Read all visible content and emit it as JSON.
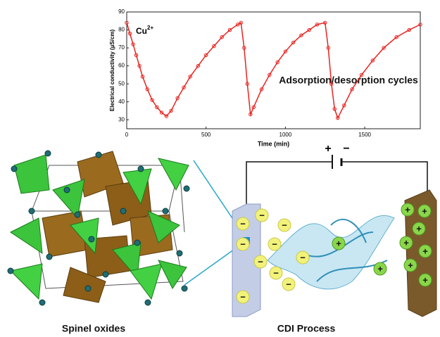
{
  "chart_data": {
    "type": "line",
    "annotation": {
      "text": "Cu",
      "superscript": "2+"
    },
    "x_label": "Time (min)",
    "y_label": "Electrical conductivity (µS/cm)",
    "x": [
      0,
      20,
      40,
      60,
      80,
      100,
      130,
      160,
      190,
      220,
      250,
      280,
      320,
      360,
      400,
      450,
      500,
      550,
      600,
      650,
      700,
      720,
      740,
      760,
      780,
      800,
      850,
      900,
      950,
      1000,
      1050,
      1100,
      1150,
      1200,
      1250,
      1270,
      1290,
      1310,
      1330,
      1370,
      1420,
      1480,
      1550,
      1620,
      1700,
      1780,
      1850
    ],
    "series": [
      {
        "color": "#e8231f",
        "values": [
          84,
          78,
          72,
          66,
          60,
          54,
          47,
          41,
          37,
          34,
          32,
          35,
          42,
          48,
          54,
          60,
          66,
          71,
          76,
          80,
          83,
          84,
          70,
          50,
          33,
          37,
          47,
          55,
          62,
          68,
          73,
          77,
          80,
          83,
          84,
          70,
          50,
          36,
          31,
          38,
          47,
          55,
          63,
          70,
          76,
          80,
          83
        ]
      }
    ],
    "xlim": [
      0,
      1850
    ],
    "ylim": [
      25,
      90
    ],
    "xticks": [
      0,
      500,
      1000,
      1500
    ],
    "yticks": [
      30,
      40,
      50,
      60,
      70,
      80,
      90
    ]
  },
  "labels": {
    "cycles": "Adsorption/desorption cycles",
    "spinel": "Spinel oxides",
    "cdi": "CDI Process"
  },
  "cdi": {
    "battery_plus": "+",
    "battery_minus": "−",
    "anion": "−",
    "cation": "+"
  }
}
